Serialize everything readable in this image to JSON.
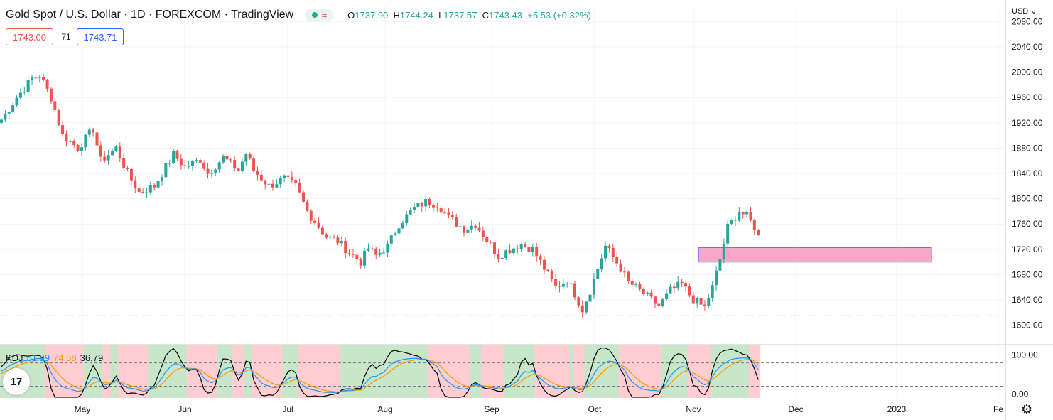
{
  "header": {
    "title": "Gold Spot / U.S. Dollar · 1D · FOREXCOM · TradingView",
    "status_icon": "wave-icon",
    "ohlc": {
      "open_label": "O",
      "open": "1737.90",
      "high_label": "H",
      "high": "1744.24",
      "low_label": "L",
      "low": "1737.57",
      "close_label": "C",
      "close": "1743.43",
      "change": "+5.53 (+0.32%)"
    }
  },
  "quote": {
    "bid": "1743.00",
    "spread": "71",
    "ask": "1743.71"
  },
  "currency": "USD",
  "indicator": {
    "name": "KDJ",
    "k": "61.99",
    "d": "74.58",
    "j": "36.79"
  },
  "colors": {
    "up": "#26a69a",
    "down": "#ef5350",
    "k_line": "#2196f3",
    "d_line": "#ff9800",
    "j_line": "#000000",
    "zone_fill": "#f7a8c8",
    "zone_border": "#2962ff",
    "bg_green": "#c8e6c9",
    "bg_red": "#ffcdd2"
  },
  "chart_data": {
    "type": "candlestick",
    "price_axis": {
      "ticks": [
        1600,
        1640,
        1680,
        1720,
        1760,
        1800,
        1840,
        1880,
        1920,
        1960,
        2000,
        2040,
        2080
      ],
      "range": [
        1575,
        2105
      ]
    },
    "time_axis": {
      "labels": [
        "May",
        "Jun",
        "Jul",
        "Aug",
        "Sep",
        "Oct",
        "Nov",
        "Dec",
        "2023",
        "Fe"
      ]
    },
    "horizontal_lines": [
      2000,
      1615
    ],
    "zone": {
      "top": 1723,
      "bottom": 1700,
      "from": "Nov 2",
      "to": "Jan 14"
    },
    "path_points": [
      [
        0,
        1925
      ],
      [
        4,
        1960
      ],
      [
        8,
        1990
      ],
      [
        10,
        1995
      ],
      [
        13,
        1960
      ],
      [
        16,
        1900
      ],
      [
        20,
        1880
      ],
      [
        24,
        1910
      ],
      [
        26,
        1860
      ],
      [
        30,
        1880
      ],
      [
        33,
        1840
      ],
      [
        36,
        1810
      ],
      [
        40,
        1820
      ],
      [
        43,
        1850
      ],
      [
        45,
        1870
      ],
      [
        48,
        1850
      ],
      [
        52,
        1862
      ],
      [
        54,
        1840
      ],
      [
        58,
        1865
      ],
      [
        62,
        1845
      ],
      [
        64,
        1872
      ],
      [
        66,
        1845
      ],
      [
        70,
        1820
      ],
      [
        74,
        1832
      ],
      [
        77,
        1820
      ],
      [
        80,
        1780
      ],
      [
        85,
        1740
      ],
      [
        88,
        1733
      ],
      [
        91,
        1715
      ],
      [
        94,
        1700
      ],
      [
        96,
        1722
      ],
      [
        98,
        1710
      ],
      [
        101,
        1725
      ],
      [
        104,
        1760
      ],
      [
        108,
        1785
      ],
      [
        111,
        1795
      ],
      [
        114,
        1792
      ],
      [
        117,
        1770
      ],
      [
        121,
        1752
      ],
      [
        124,
        1760
      ],
      [
        127,
        1735
      ],
      [
        130,
        1710
      ],
      [
        133,
        1720
      ],
      [
        136,
        1728
      ],
      [
        139,
        1720
      ],
      [
        142,
        1690
      ],
      [
        145,
        1660
      ],
      [
        148,
        1672
      ],
      [
        150,
        1650
      ],
      [
        152,
        1625
      ],
      [
        154,
        1655
      ],
      [
        156,
        1690
      ],
      [
        158,
        1725
      ],
      [
        160,
        1708
      ],
      [
        162,
        1690
      ],
      [
        164,
        1668
      ],
      [
        166,
        1660
      ],
      [
        169,
        1645
      ],
      [
        172,
        1630
      ],
      [
        175,
        1655
      ],
      [
        178,
        1665
      ],
      [
        181,
        1640
      ],
      [
        184,
        1628
      ],
      [
        186,
        1660
      ],
      [
        188,
        1705
      ],
      [
        190,
        1755
      ],
      [
        193,
        1780
      ],
      [
        195,
        1772
      ],
      [
        197,
        1755
      ],
      [
        198,
        1740
      ]
    ],
    "kdj_axis": {
      "ticks": [
        0,
        100
      ],
      "guides": [
        20,
        80
      ],
      "range": [
        -10,
        125
      ]
    }
  },
  "kdj_label_values": {
    "axis_0": "0.00",
    "axis_100": "100.00"
  }
}
